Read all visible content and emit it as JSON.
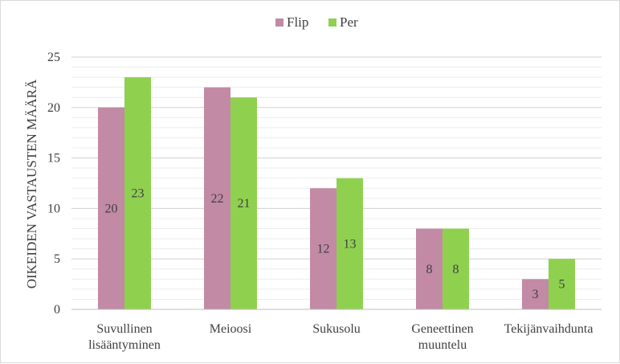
{
  "chart_data": {
    "type": "bar",
    "title": "",
    "xlabel": "",
    "ylabel": "OIKEIDEN VASTAUSTEN MÄÄRÄ",
    "ylim": [
      0,
      25
    ],
    "yticks": [
      0,
      5,
      10,
      15,
      20,
      25
    ],
    "grid": true,
    "legend_position": "top-center",
    "categories": [
      [
        "Suvullinen",
        "lisääntyminen"
      ],
      [
        "Meioosi"
      ],
      [
        "Sukusolu"
      ],
      [
        "Geneettinen",
        "muuntelu"
      ],
      [
        "Tekijänvaihdunta"
      ]
    ],
    "series": [
      {
        "name": "Flip",
        "color": "#c28aa5",
        "values": [
          20,
          22,
          12,
          8,
          3
        ]
      },
      {
        "name": "Per",
        "color": "#8fd14f",
        "values": [
          23,
          21,
          13,
          8,
          5
        ]
      }
    ]
  }
}
